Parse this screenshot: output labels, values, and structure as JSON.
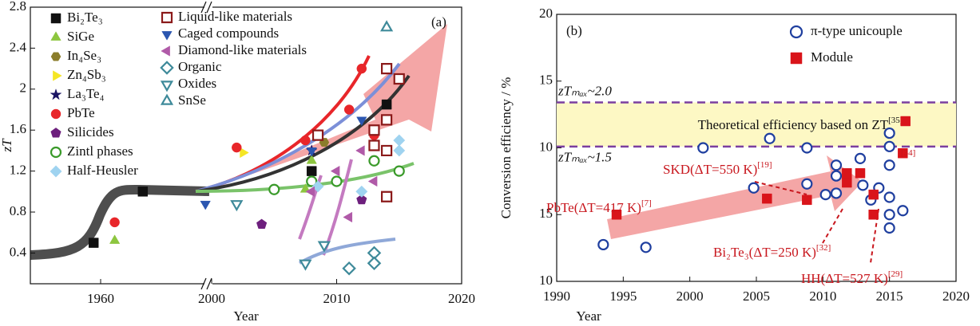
{
  "chart_data": [
    {
      "type": "scatter",
      "panel_label": "(a)",
      "x_label": "Year",
      "y_label": "zT",
      "xlim": [
        1950,
        2020
      ],
      "xbreak": [
        1975,
        2000
      ],
      "xticks": [
        1960,
        2000,
        2010,
        2020
      ],
      "ylim": [
        0.1,
        2.8
      ],
      "yticks": [
        0.4,
        0.8,
        1.2,
        1.6,
        2.0,
        2.4,
        2.8
      ],
      "series": [
        {
          "name": "Bi₂Te₃",
          "color": "#111111",
          "marker": "square",
          "filled": true,
          "x": [
            1959,
            1966,
            2008,
            2014
          ],
          "y": [
            0.5,
            1.0,
            1.2,
            1.85
          ]
        },
        {
          "name": "SiGe",
          "color": "#8dc63f",
          "marker": "triangle-up",
          "filled": true,
          "x": [
            1962,
            2007.5,
            2008
          ],
          "y": [
            0.52,
            1.02,
            1.3
          ]
        },
        {
          "name": "In₄Se₃",
          "color": "#8b7d2b",
          "marker": "hexagon",
          "filled": true,
          "x": [
            2009
          ],
          "y": [
            1.48
          ]
        },
        {
          "name": "Zn₄Sb₃",
          "color": "#f5e625",
          "marker": "triangle-right",
          "filled": true,
          "x": [
            2002.5
          ],
          "y": [
            1.38
          ]
        },
        {
          "name": "La₃Te₄",
          "color": "#1b1464",
          "marker": "star",
          "filled": true,
          "x": [
            2008
          ],
          "y": [
            1.4
          ]
        },
        {
          "name": "PbTe",
          "color": "#e8262a",
          "marker": "circle",
          "filled": true,
          "x": [
            1962,
            2002,
            2007.5,
            2011,
            2012,
            2013
          ],
          "y": [
            0.7,
            1.43,
            1.5,
            1.8,
            2.2,
            1.55
          ]
        },
        {
          "name": "Silicides",
          "color": "#6d1f7d",
          "marker": "pentagon",
          "filled": true,
          "x": [
            2004,
            2012
          ],
          "y": [
            0.68,
            0.92
          ]
        },
        {
          "name": "Zintl phases",
          "color": "#3a9a2a",
          "marker": "circle",
          "filled": false,
          "x": [
            2005,
            2008,
            2010,
            2013,
            2015
          ],
          "y": [
            1.02,
            1.1,
            1.1,
            1.3,
            1.2
          ]
        },
        {
          "name": "Half-Heusler",
          "color": "#9fd3f0",
          "marker": "diamond",
          "filled": true,
          "x": [
            2008.5,
            2012,
            2015,
            2015
          ],
          "y": [
            1.05,
            1.0,
            1.5,
            1.4
          ]
        },
        {
          "name": "Liquid-like materials",
          "color": "#8b1a1a",
          "marker": "square",
          "filled": false,
          "x": [
            2008.5,
            2013,
            2013,
            2014,
            2014,
            2014,
            2014,
            2015
          ],
          "y": [
            1.55,
            1.6,
            1.45,
            2.2,
            1.7,
            1.4,
            0.95,
            2.1
          ]
        },
        {
          "name": "Caged compounds",
          "color": "#2b56b0",
          "marker": "triangle-down",
          "filled": true,
          "x": [
            1999.5,
            2008,
            2012
          ],
          "y": [
            0.88,
            1.4,
            1.7
          ]
        },
        {
          "name": "Diamond-like materials",
          "color": "#b05aa8",
          "marker": "triangle-left",
          "filled": true,
          "x": [
            2008,
            2010,
            2011,
            2012,
            2013
          ],
          "y": [
            1.0,
            1.2,
            0.75,
            1.4,
            1.1
          ]
        },
        {
          "name": "Organic",
          "color": "#3e8a9a",
          "marker": "diamond",
          "filled": false,
          "x": [
            2011,
            2013,
            2013
          ],
          "y": [
            0.25,
            0.4,
            0.3
          ]
        },
        {
          "name": "Oxides",
          "color": "#3e8a9a",
          "marker": "triangle-down",
          "filled": false,
          "x": [
            2002,
            2007.5,
            2009
          ],
          "y": [
            0.88,
            0.3,
            0.48
          ]
        },
        {
          "name": "SnSe",
          "color": "#3e8a9a",
          "marker": "triangle-up",
          "filled": false,
          "x": [
            2014
          ],
          "y": [
            2.6
          ]
        }
      ]
    },
    {
      "type": "scatter",
      "panel_label": "(b)",
      "x_label": "Year",
      "y_label": "Conversion efficiency / %",
      "xlim": [
        1990,
        2020
      ],
      "xticks": [
        1990,
        1995,
        2000,
        2005,
        2010,
        2015,
        2020
      ],
      "ylim": [
        0,
        20
      ],
      "yticks": [
        {
          "value": 0,
          "label": "10"
        },
        {
          "value": 5,
          "label": "15"
        },
        10,
        15,
        20
      ],
      "series": [
        {
          "name": "π-type unicouple",
          "color": "#1f3f9f",
          "marker": "circle",
          "filled": false,
          "x": [
            1993.5,
            1996.7,
            2001,
            2004.8,
            2006,
            2008.8,
            2008.8,
            2010.2,
            2011,
            2011,
            2011,
            2012.8,
            2013,
            2013.6,
            2014.2,
            2015,
            2015,
            2015,
            2015,
            2015,
            2015,
            2016
          ],
          "y": [
            2.75,
            2.55,
            10.0,
            7.0,
            10.7,
            10.0,
            7.3,
            6.5,
            8.7,
            7.9,
            6.6,
            9.2,
            7.2,
            6.1,
            7.0,
            11.1,
            10.1,
            8.7,
            6.3,
            5.0,
            4.0,
            5.3
          ]
        },
        {
          "name": "Module",
          "color": "#d9141a",
          "marker": "square",
          "filled": true,
          "x": [
            1994.5,
            2005.8,
            2008.8,
            2011.8,
            2011.8,
            2012.8,
            2013.8,
            2013.8,
            2016.2,
            2016
          ],
          "y": [
            5.0,
            6.2,
            6.1,
            8.1,
            7.4,
            8.1,
            6.5,
            5.0,
            12.0,
            9.6
          ]
        }
      ],
      "bands": [
        {
          "label": "zTₘₐₓ~2.0",
          "value": 13.4
        },
        {
          "label": "zTₘₐₓ~1.5",
          "value": 10.1
        }
      ],
      "band_text": {
        "text": "Theoretical efficiency based on ZT",
        "ref": "[35]"
      },
      "annotations": [
        {
          "text": "SKD(ΔT=550 K)",
          "ref": "[19]"
        },
        {
          "text": "PbTe(ΔT=417 K)",
          "ref": "[7]"
        },
        {
          "text": "Bi₂Te₃(ΔT=250 K)",
          "ref": "[32]"
        },
        {
          "text": "HH(ΔT=527 K)",
          "ref": "[29]"
        },
        {
          "text": "",
          "ref": "[34]"
        }
      ]
    }
  ]
}
